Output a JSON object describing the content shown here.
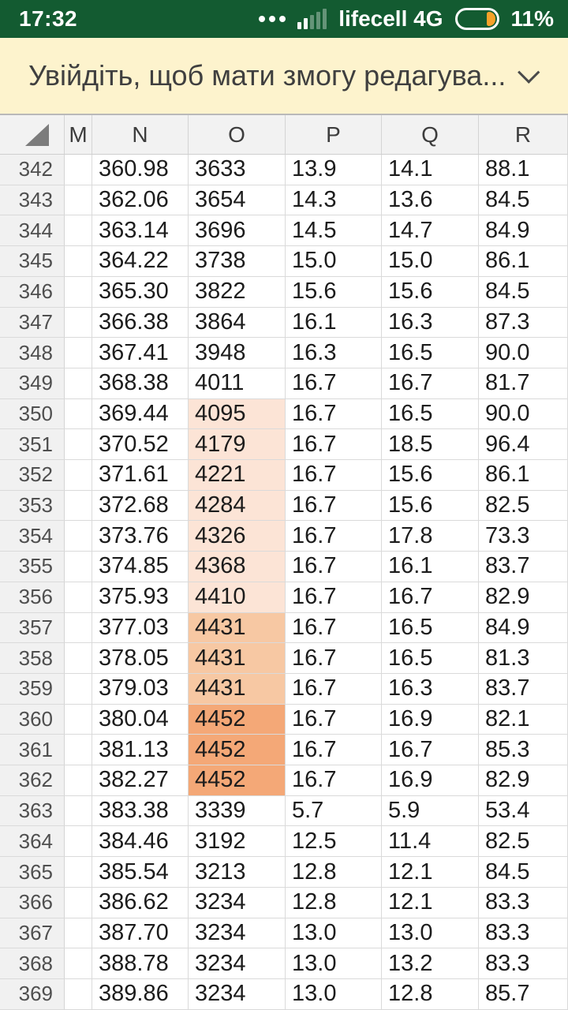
{
  "status_bar": {
    "time": "17:32",
    "carrier": "lifecell 4G",
    "battery_percent": "11%",
    "bg_color": "#135b31",
    "battery_accent_color": "#f7a22a",
    "icons": [
      "more-dots-icon",
      "signal-strength-icon",
      "battery-icon"
    ]
  },
  "banner": {
    "text": "Увійдіть, щоб мати змогу редагува...",
    "bg_color": "#fdf3cd",
    "icon": "chevron-down-icon"
  },
  "sheet": {
    "columns": [
      "M",
      "N",
      "O",
      "P",
      "Q",
      "R"
    ],
    "fill_colors": {
      "light": "#fce4d6",
      "medium": "#f7c8a3",
      "dark": "#f4a877"
    },
    "rows": [
      {
        "num": "342",
        "m": "",
        "n": "360.98",
        "o": "3633",
        "p": "13.9",
        "q": "14.1",
        "r": "88.1",
        "fill": null
      },
      {
        "num": "343",
        "m": "",
        "n": "362.06",
        "o": "3654",
        "p": "14.3",
        "q": "13.6",
        "r": "84.5",
        "fill": null
      },
      {
        "num": "344",
        "m": "",
        "n": "363.14",
        "o": "3696",
        "p": "14.5",
        "q": "14.7",
        "r": "84.9",
        "fill": null
      },
      {
        "num": "345",
        "m": "",
        "n": "364.22",
        "o": "3738",
        "p": "15.0",
        "q": "15.0",
        "r": "86.1",
        "fill": null
      },
      {
        "num": "346",
        "m": "",
        "n": "365.30",
        "o": "3822",
        "p": "15.6",
        "q": "15.6",
        "r": "84.5",
        "fill": null
      },
      {
        "num": "347",
        "m": "",
        "n": "366.38",
        "o": "3864",
        "p": "16.1",
        "q": "16.3",
        "r": "87.3",
        "fill": null
      },
      {
        "num": "348",
        "m": "",
        "n": "367.41",
        "o": "3948",
        "p": "16.3",
        "q": "16.5",
        "r": "90.0",
        "fill": null
      },
      {
        "num": "349",
        "m": "",
        "n": "368.38",
        "o": "4011",
        "p": "16.7",
        "q": "16.7",
        "r": "81.7",
        "fill": null
      },
      {
        "num": "350",
        "m": "",
        "n": "369.44",
        "o": "4095",
        "p": "16.7",
        "q": "16.5",
        "r": "90.0",
        "fill": "light"
      },
      {
        "num": "351",
        "m": "",
        "n": "370.52",
        "o": "4179",
        "p": "16.7",
        "q": "18.5",
        "r": "96.4",
        "fill": "light"
      },
      {
        "num": "352",
        "m": "",
        "n": "371.61",
        "o": "4221",
        "p": "16.7",
        "q": "15.6",
        "r": "86.1",
        "fill": "light"
      },
      {
        "num": "353",
        "m": "",
        "n": "372.68",
        "o": "4284",
        "p": "16.7",
        "q": "15.6",
        "r": "82.5",
        "fill": "light"
      },
      {
        "num": "354",
        "m": "",
        "n": "373.76",
        "o": "4326",
        "p": "16.7",
        "q": "17.8",
        "r": "73.3",
        "fill": "light"
      },
      {
        "num": "355",
        "m": "",
        "n": "374.85",
        "o": "4368",
        "p": "16.7",
        "q": "16.1",
        "r": "83.7",
        "fill": "light"
      },
      {
        "num": "356",
        "m": "",
        "n": "375.93",
        "o": "4410",
        "p": "16.7",
        "q": "16.7",
        "r": "82.9",
        "fill": "light"
      },
      {
        "num": "357",
        "m": "",
        "n": "377.03",
        "o": "4431",
        "p": "16.7",
        "q": "16.5",
        "r": "84.9",
        "fill": "medium"
      },
      {
        "num": "358",
        "m": "",
        "n": "378.05",
        "o": "4431",
        "p": "16.7",
        "q": "16.5",
        "r": "81.3",
        "fill": "medium"
      },
      {
        "num": "359",
        "m": "",
        "n": "379.03",
        "o": "4431",
        "p": "16.7",
        "q": "16.3",
        "r": "83.7",
        "fill": "medium"
      },
      {
        "num": "360",
        "m": "",
        "n": "380.04",
        "o": "4452",
        "p": "16.7",
        "q": "16.9",
        "r": "82.1",
        "fill": "dark"
      },
      {
        "num": "361",
        "m": "",
        "n": "381.13",
        "o": "4452",
        "p": "16.7",
        "q": "16.7",
        "r": "85.3",
        "fill": "dark"
      },
      {
        "num": "362",
        "m": "",
        "n": "382.27",
        "o": "4452",
        "p": "16.7",
        "q": "16.9",
        "r": "82.9",
        "fill": "dark"
      },
      {
        "num": "363",
        "m": "",
        "n": "383.38",
        "o": "3339",
        "p": "5.7",
        "q": "5.9",
        "r": "53.4",
        "fill": null
      },
      {
        "num": "364",
        "m": "",
        "n": "384.46",
        "o": "3192",
        "p": "12.5",
        "q": "11.4",
        "r": "82.5",
        "fill": null
      },
      {
        "num": "365",
        "m": "",
        "n": "385.54",
        "o": "3213",
        "p": "12.8",
        "q": "12.1",
        "r": "84.5",
        "fill": null
      },
      {
        "num": "366",
        "m": "",
        "n": "386.62",
        "o": "3234",
        "p": "12.8",
        "q": "12.1",
        "r": "83.3",
        "fill": null
      },
      {
        "num": "367",
        "m": "",
        "n": "387.70",
        "o": "3234",
        "p": "13.0",
        "q": "13.0",
        "r": "83.3",
        "fill": null
      },
      {
        "num": "368",
        "m": "",
        "n": "388.78",
        "o": "3234",
        "p": "13.0",
        "q": "13.2",
        "r": "83.3",
        "fill": null
      },
      {
        "num": "369",
        "m": "",
        "n": "389.86",
        "o": "3234",
        "p": "13.0",
        "q": "12.8",
        "r": "85.7",
        "fill": null
      }
    ]
  }
}
